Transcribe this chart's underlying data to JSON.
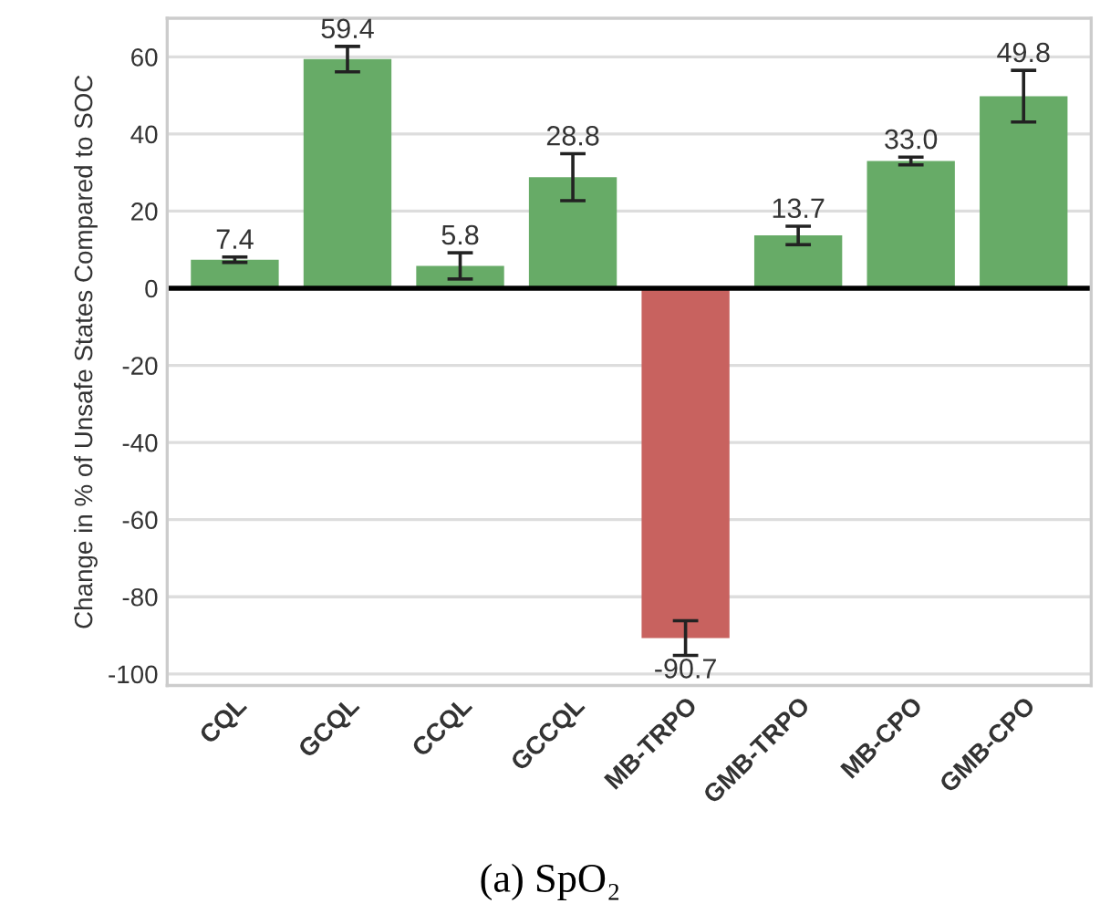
{
  "chart_data": {
    "type": "bar",
    "ylabel": "Change in % of Unsafe States Compared to SOC",
    "categories": [
      "CQL",
      "GCQL",
      "CCQL",
      "GCCQL",
      "MB-TRPO",
      "GMB-TRPO",
      "MB-CPO",
      "GMB-CPO"
    ],
    "values": [
      7.4,
      59.4,
      5.8,
      28.8,
      -90.7,
      13.7,
      33.0,
      49.8
    ],
    "errors": [
      0.7,
      3.3,
      3.4,
      6.1,
      4.5,
      2.4,
      1.0,
      6.7
    ],
    "colors": [
      "#67ab67",
      "#67ab67",
      "#67ab67",
      "#67ab67",
      "#c8625f",
      "#67ab67",
      "#67ab67",
      "#67ab67"
    ],
    "value_labels": [
      "7.4",
      "59.4",
      "5.8",
      "28.8",
      "-90.7",
      "13.7",
      "33.0",
      "49.8"
    ],
    "ylim": [
      -103,
      70
    ],
    "yticks": [
      -100,
      -80,
      -60,
      -40,
      -20,
      0,
      20,
      40,
      60
    ],
    "grid": "y",
    "ref_lines": [
      {
        "axis": "y",
        "value": 0,
        "color": "#000000"
      }
    ],
    "annotations": [
      "(a) SpO₂"
    ]
  }
}
